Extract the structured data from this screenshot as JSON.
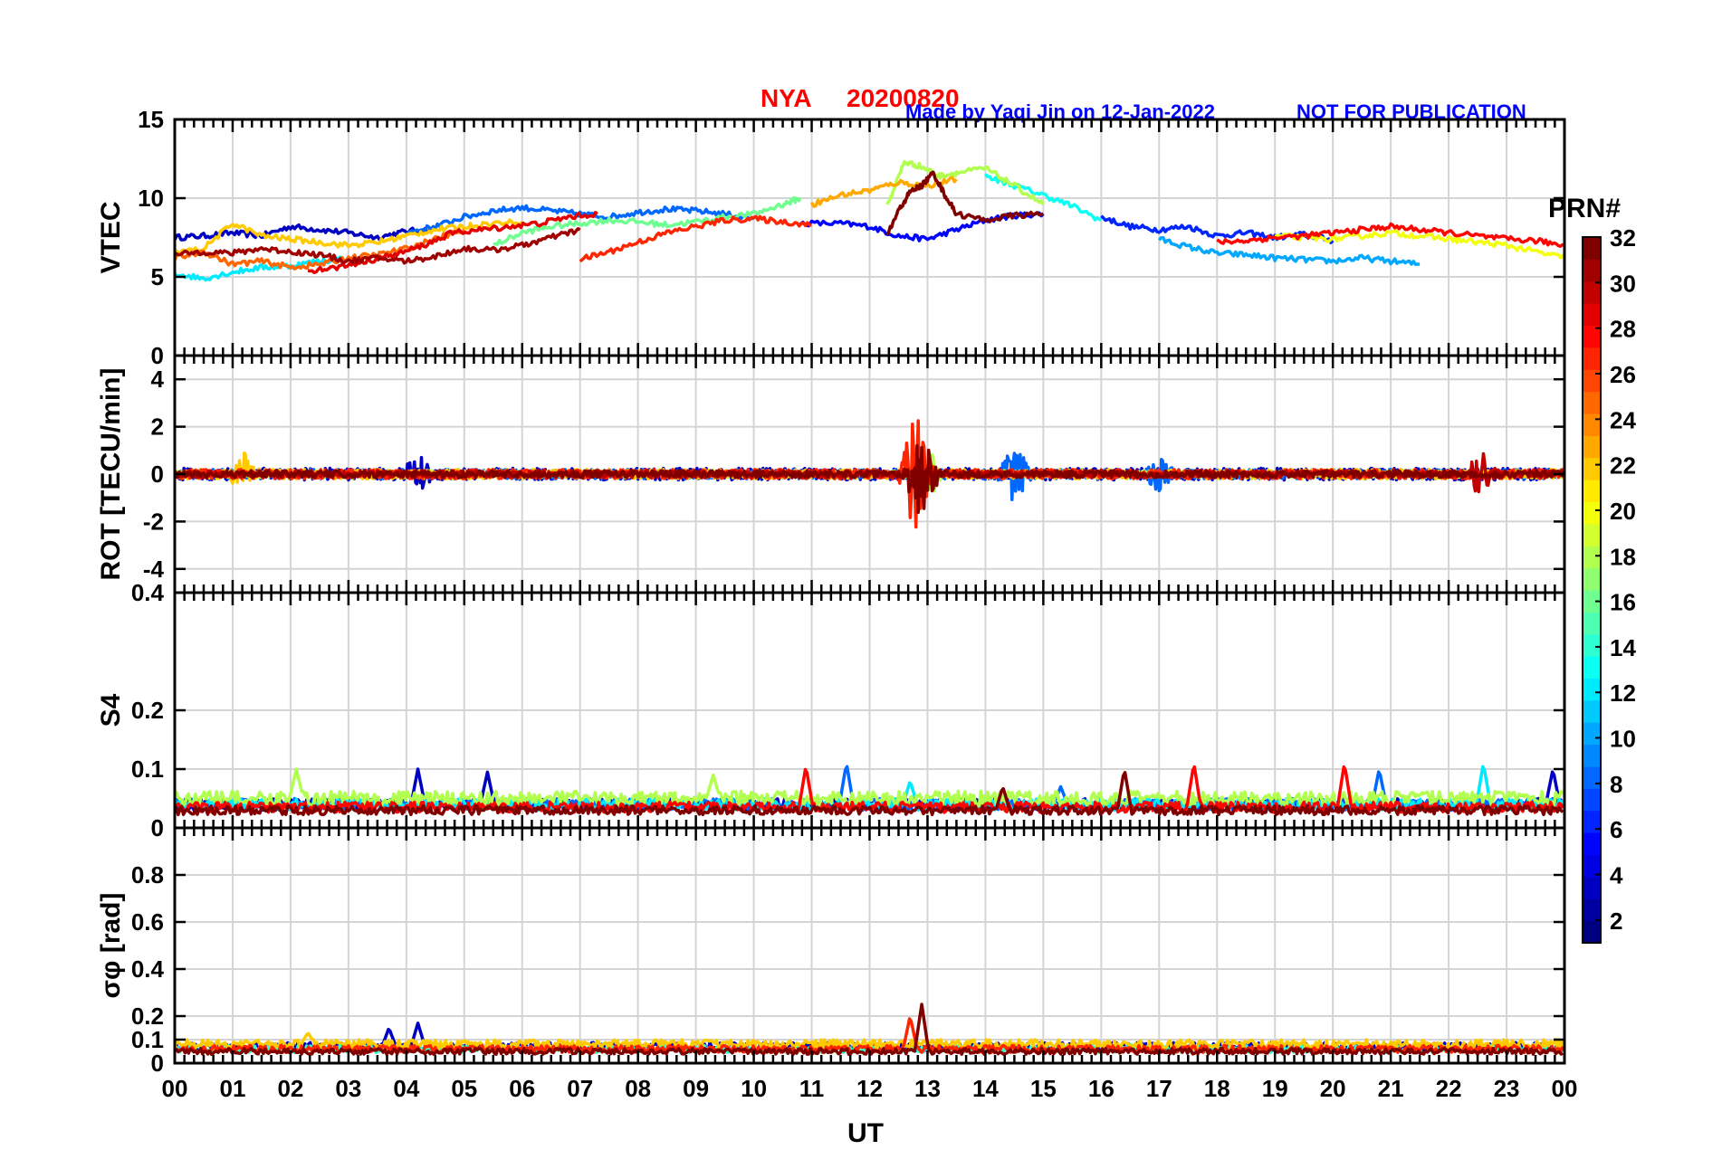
{
  "title": {
    "station": "NYA",
    "date": "20200820",
    "credit": "Made by Yaqi Jin on 12-Jan-2022",
    "notice": "NOT FOR PUBLICATION",
    "color_title": "#ff0000",
    "color_credit": "#0000ff"
  },
  "chart_data": {
    "type": "line",
    "xlabel": "UT",
    "xlim": [
      0,
      24
    ],
    "x_ticks": [
      "00",
      "01",
      "02",
      "03",
      "04",
      "05",
      "06",
      "07",
      "08",
      "09",
      "10",
      "11",
      "12",
      "13",
      "14",
      "15",
      "16",
      "17",
      "18",
      "19",
      "20",
      "21",
      "22",
      "23",
      "00"
    ],
    "grid": true,
    "colormap": "jet",
    "colorbar": {
      "label": "PRN#",
      "range": [
        1,
        32
      ],
      "ticks": [
        "2",
        "4",
        "6",
        "8",
        "10",
        "12",
        "14",
        "16",
        "18",
        "20",
        "22",
        "24",
        "26",
        "28",
        "30",
        "32"
      ]
    },
    "panels": [
      {
        "name": "vtec",
        "ylabel": "VTEC",
        "ylim": [
          0,
          15
        ],
        "yticks": [
          "0",
          "5",
          "10",
          "15"
        ],
        "series": [
          {
            "prn": 3,
            "x": [
              0,
              0.5,
              1,
              1.5,
              2,
              2.5,
              3,
              3.5,
              4,
              4.5
            ],
            "y": [
              7.5,
              7.6,
              7.8,
              7.6,
              8.2,
              8.0,
              7.8,
              7.5,
              7.9,
              8.0
            ]
          },
          {
            "prn": 5,
            "x": [
              10.8,
              11.5,
              12,
              12.5,
              13,
              13.5,
              14,
              14.5,
              15
            ],
            "y": [
              8.4,
              8.4,
              8.2,
              7.6,
              7.4,
              8.0,
              8.6,
              8.9,
              9.0
            ]
          },
          {
            "prn": 6,
            "x": [
              16,
              16.5,
              17,
              17.5,
              18,
              18.5,
              19,
              19.5,
              20
            ],
            "y": [
              8.8,
              8.2,
              8.0,
              8.2,
              7.6,
              7.8,
              7.5,
              7.7,
              7.3
            ]
          },
          {
            "prn": 8,
            "x": [
              4,
              4.5,
              5,
              5.5,
              6,
              6.5,
              7,
              7.5,
              8,
              8.5,
              9,
              9.5,
              10
            ],
            "y": [
              7.8,
              8.2,
              8.8,
              9.2,
              9.4,
              9.2,
              9.0,
              8.8,
              9.1,
              9.3,
              9.2,
              9.0,
              8.7
            ]
          },
          {
            "prn": 10,
            "x": [
              17,
              17.5,
              18,
              18.5,
              19,
              19.5,
              20,
              20.5,
              21,
              21.5
            ],
            "y": [
              7.4,
              6.9,
              6.5,
              6.4,
              6.2,
              6.1,
              6.0,
              6.2,
              6.0,
              5.8
            ]
          },
          {
            "prn": 12,
            "x": [
              0,
              0.5,
              1,
              1.5,
              2,
              2.5,
              3
            ],
            "y": [
              5.2,
              4.9,
              5.3,
              5.6,
              5.7,
              6.0,
              6.2
            ]
          },
          {
            "prn": 13,
            "x": [
              14,
              14.5,
              15,
              15.5,
              16
            ],
            "y": [
              11.4,
              10.8,
              10.2,
              9.5,
              8.6
            ]
          },
          {
            "prn": 16,
            "x": [
              5.5,
              6,
              6.5,
              7,
              7.5,
              8,
              8.5,
              9,
              9.5,
              10,
              10.5,
              10.8
            ],
            "y": [
              7.0,
              7.8,
              8.2,
              8.4,
              8.6,
              8.5,
              8.3,
              8.5,
              8.8,
              9.0,
              9.6,
              10.0
            ]
          },
          {
            "prn": 18,
            "x": [
              12.3,
              12.6,
              12.9,
              13.2,
              13.5,
              14,
              14.5,
              15
            ],
            "y": [
              9.5,
              12.3,
              12.0,
              11.4,
              11.6,
              11.9,
              10.8,
              9.6
            ]
          },
          {
            "prn": 20,
            "x": [
              19,
              19.5,
              20,
              20.5,
              21,
              21.5,
              22,
              22.5,
              23,
              23.5,
              24
            ],
            "y": [
              7.6,
              7.5,
              7.4,
              7.6,
              7.8,
              7.6,
              7.4,
              7.2,
              7.0,
              6.6,
              6.2
            ]
          },
          {
            "prn": 22,
            "x": [
              0,
              0.5,
              1,
              1.5,
              2,
              2.5,
              3,
              3.5,
              4,
              4.5,
              5,
              5.5,
              6
            ],
            "y": [
              6.5,
              6.8,
              8.4,
              7.6,
              7.4,
              7.2,
              7.0,
              7.2,
              7.6,
              8.0,
              8.2,
              8.4,
              8.5
            ]
          },
          {
            "prn": 23,
            "x": [
              11,
              11.5,
              12,
              12.5,
              13,
              13.5
            ],
            "y": [
              9.6,
              10.2,
              10.5,
              11.0,
              10.8,
              11.2
            ]
          },
          {
            "prn": 25,
            "x": [
              0,
              0.5,
              1,
              1.5,
              2,
              2.5,
              3,
              3.5,
              4,
              4.5,
              5
            ],
            "y": [
              6.2,
              6.6,
              5.8,
              6.0,
              5.6,
              5.8,
              6.2,
              6.4,
              6.8,
              7.4,
              8.0
            ]
          },
          {
            "prn": 27,
            "x": [
              7,
              7.5,
              8,
              8.5,
              9,
              9.5,
              10,
              10.5,
              11
            ],
            "y": [
              6.1,
              6.6,
              7.2,
              7.8,
              8.2,
              8.6,
              8.7,
              8.5,
              8.3
            ]
          },
          {
            "prn": 28,
            "x": [
              18,
              18.5,
              19,
              19.5,
              20,
              20.5,
              21,
              21.5,
              22,
              22.5,
              23,
              23.5,
              24
            ],
            "y": [
              7.2,
              7.3,
              7.5,
              7.6,
              7.8,
              8.0,
              8.2,
              8.0,
              7.8,
              7.6,
              7.4,
              7.3,
              7.0
            ]
          },
          {
            "prn": 29,
            "x": [
              2.3,
              2.8,
              3.3,
              3.8,
              4.3,
              4.8,
              5.3,
              5.8,
              6.3,
              6.8,
              7.3
            ],
            "y": [
              5.4,
              5.6,
              6.0,
              6.4,
              7.0,
              7.8,
              8.0,
              8.2,
              8.4,
              8.8,
              9.0
            ]
          },
          {
            "prn": 31,
            "x": [
              0,
              0.5,
              1,
              1.5,
              2,
              2.5,
              3,
              3.5,
              4,
              4.5,
              5,
              5.5,
              6,
              6.5,
              7
            ],
            "y": [
              6.4,
              6.6,
              6.5,
              6.8,
              6.6,
              6.4,
              6.0,
              6.2,
              6.0,
              6.3,
              6.8,
              6.7,
              7.0,
              7.5,
              8.0
            ]
          },
          {
            "prn": 32,
            "x": [
              12.3,
              12.5,
              12.7,
              12.9,
              13.1,
              13.3,
              13.5,
              14,
              14.5,
              15
            ],
            "y": [
              7.6,
              9.2,
              10.4,
              10.8,
              11.6,
              10.2,
              9.0,
              8.6,
              8.9,
              9.0
            ]
          }
        ]
      },
      {
        "name": "rot",
        "ylabel": "ROT [TECU/min]",
        "ylim": [
          -5,
          5
        ],
        "yticks": [
          "-4",
          "-2",
          "0",
          "2",
          "4"
        ],
        "series": [
          {
            "prn": 3,
            "noise": 0.25,
            "bursts": [
              [
                4.2,
                0.9
              ]
            ]
          },
          {
            "prn": 8,
            "noise": 0.2,
            "bursts": [
              [
                14.5,
                1.3
              ],
              [
                17,
                0.8
              ]
            ]
          },
          {
            "prn": 18,
            "noise": 0.15,
            "bursts": [
              [
                13,
                1.2
              ]
            ]
          },
          {
            "prn": 22,
            "noise": 0.2,
            "bursts": [
              [
                1.2,
                0.9
              ]
            ]
          },
          {
            "prn": 27,
            "noise": 0.2,
            "bursts": [
              [
                12.8,
                2.6
              ]
            ]
          },
          {
            "prn": 30,
            "noise": 0.15,
            "bursts": [
              [
                22.6,
                1.2
              ]
            ]
          },
          {
            "prn": 32,
            "noise": 0.15,
            "bursts": [
              [
                12.9,
                2.2
              ]
            ]
          }
        ]
      },
      {
        "name": "s4",
        "ylabel": "S4",
        "ylim": [
          0,
          0.4
        ],
        "yticks": [
          "0",
          "0.1",
          "0.2",
          "0.4"
        ],
        "series": [
          {
            "prn": 3,
            "base": 0.04,
            "peaks": [
              [
                4.2,
                0.1
              ],
              [
                5.4,
                0.095
              ],
              [
                23.8,
                0.1
              ]
            ]
          },
          {
            "prn": 8,
            "base": 0.04,
            "peaks": [
              [
                11.6,
                0.11
              ],
              [
                15.3,
                0.07
              ],
              [
                20.8,
                0.1
              ]
            ]
          },
          {
            "prn": 12,
            "base": 0.04,
            "peaks": [
              [
                12.7,
                0.08
              ],
              [
                22.6,
                0.11
              ]
            ]
          },
          {
            "prn": 18,
            "base": 0.05,
            "peaks": [
              [
                2.1,
                0.1
              ],
              [
                9.3,
                0.09
              ]
            ]
          },
          {
            "prn": 28,
            "base": 0.035,
            "peaks": [
              [
                10.9,
                0.105
              ],
              [
                17.6,
                0.11
              ],
              [
                20.2,
                0.11
              ]
            ]
          },
          {
            "prn": 32,
            "base": 0.03,
            "peaks": [
              [
                14.3,
                0.07
              ],
              [
                16.4,
                0.1
              ]
            ]
          }
        ]
      },
      {
        "name": "sigma_phi",
        "ylabel": "σφ [rad]",
        "ylim": [
          0,
          1
        ],
        "yticks": [
          "0",
          "0.1",
          "0.2",
          "0.4",
          "0.6",
          "0.8"
        ],
        "series": [
          {
            "prn": 3,
            "base": 0.07,
            "peaks": [
              [
                3.7,
                0.15
              ],
              [
                4.2,
                0.17
              ]
            ]
          },
          {
            "prn": 14,
            "base": 0.06,
            "peaks": [
              [
                16.5,
                0.08
              ]
            ]
          },
          {
            "prn": 22,
            "base": 0.08,
            "peaks": [
              [
                2.3,
                0.13
              ]
            ]
          },
          {
            "prn": 27,
            "base": 0.06,
            "peaks": [
              [
                12.7,
                0.2
              ]
            ]
          },
          {
            "prn": 32,
            "base": 0.05,
            "peaks": [
              [
                12.9,
                0.25
              ]
            ]
          }
        ]
      }
    ]
  }
}
